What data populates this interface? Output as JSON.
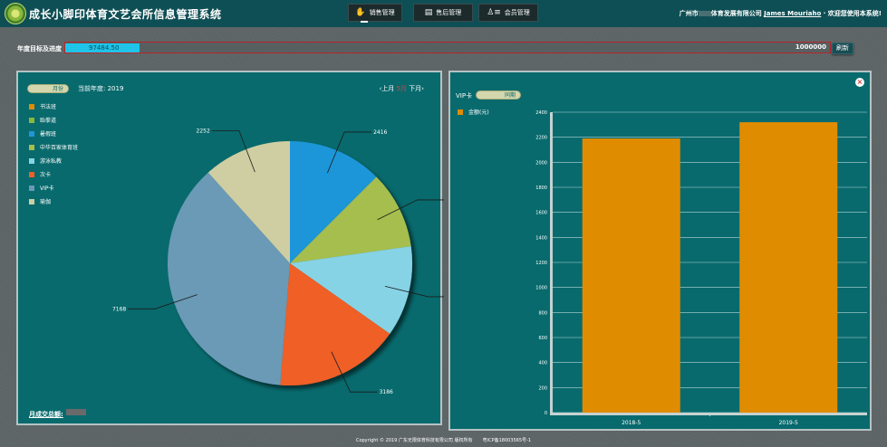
{
  "header": {
    "title": "成长小脚印体育文艺会所信息管理系统",
    "nav": [
      {
        "label": "销售管理",
        "icon": "hand-icon"
      },
      {
        "label": "售后管理",
        "icon": "document-icon"
      },
      {
        "label": "会员管理",
        "icon": "users-icon"
      }
    ],
    "company": "广州市",
    "company_mid": "体育发展有限公司",
    "user": "James Mouriaho",
    "welcome": "· 欢迎您使用本系统!"
  },
  "goal": {
    "label": "年度目标及进度",
    "current": "97484.50",
    "target": "1000000",
    "button": "刷新",
    "progress_pct": 9.75
  },
  "left_panel": {
    "toggle_label": "月份",
    "year_text": "当前年度: 2019",
    "prev": "‹上月",
    "current_month": "5月",
    "next": "下月›",
    "month_total_label": "月成交总额:"
  },
  "right_panel": {
    "vip_label": "VIP卡",
    "toggle_label": "同期",
    "legend": "金额(元)"
  },
  "chart_data": [
    {
      "type": "pie",
      "slices": [
        {
          "name": "书法班",
          "value": 0,
          "color": "#e08c00"
        },
        {
          "name": "跆拳道",
          "value": 0,
          "color": "#8bb83a"
        },
        {
          "name": "暑假班",
          "value": 2416,
          "color": "#1e96d8"
        },
        {
          "name": "中华百家体育班",
          "value": 1986,
          "color": "#a6be4d"
        },
        {
          "name": "游泳私教",
          "value": 2322,
          "color": "#86d3e6"
        },
        {
          "name": "次卡",
          "value": 3186,
          "color": "#ef5f27"
        },
        {
          "name": "VIP卡",
          "value": 7168,
          "color": "#6a9ab6"
        },
        {
          "name": "瑜伽",
          "value": 2252,
          "color": "#cfcea2"
        }
      ]
    },
    {
      "type": "bar",
      "categories": [
        "2018-5",
        "2019-5"
      ],
      "series": [
        {
          "name": "金额(元)",
          "values": [
            2190,
            2320
          ]
        }
      ],
      "ylim": [
        0,
        2400
      ],
      "yticks": [
        0,
        200,
        400,
        600,
        800,
        1000,
        1200,
        1400,
        1600,
        1800,
        2000,
        2200,
        2400
      ],
      "color": "#e08c00"
    }
  ],
  "footer": {
    "copyright": "Copyright © 2019 广东无限体育科技有限公司 版权所有",
    "icp": "粤ICP备18003565号-1"
  }
}
